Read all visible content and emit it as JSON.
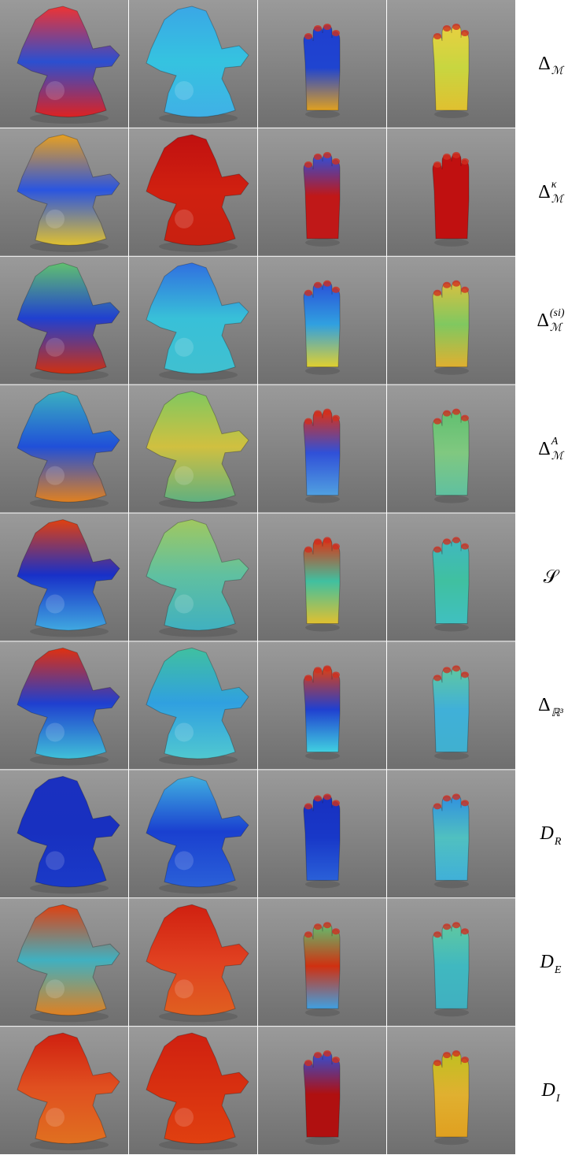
{
  "figure": {
    "rows": [
      {
        "label": {
          "base": "Δ",
          "sub": "ℳ"
        }
      },
      {
        "label": {
          "base": "Δ",
          "sub": "ℳ",
          "sup": "κ"
        }
      },
      {
        "label": {
          "base": "Δ",
          "sub": "ℳ",
          "sup": "(si)"
        }
      },
      {
        "label": {
          "base": "Δ",
          "sub": "ℳ",
          "sup": "A"
        }
      },
      {
        "label": {
          "base": "𝒮"
        }
      },
      {
        "label": {
          "base": "Δ",
          "sub": "ℝ³"
        }
      },
      {
        "label": {
          "base": "D",
          "sub": "R"
        }
      },
      {
        "label": {
          "base": "D",
          "sub": "E"
        }
      },
      {
        "label": {
          "base": "D",
          "sub": "I"
        }
      }
    ]
  }
}
